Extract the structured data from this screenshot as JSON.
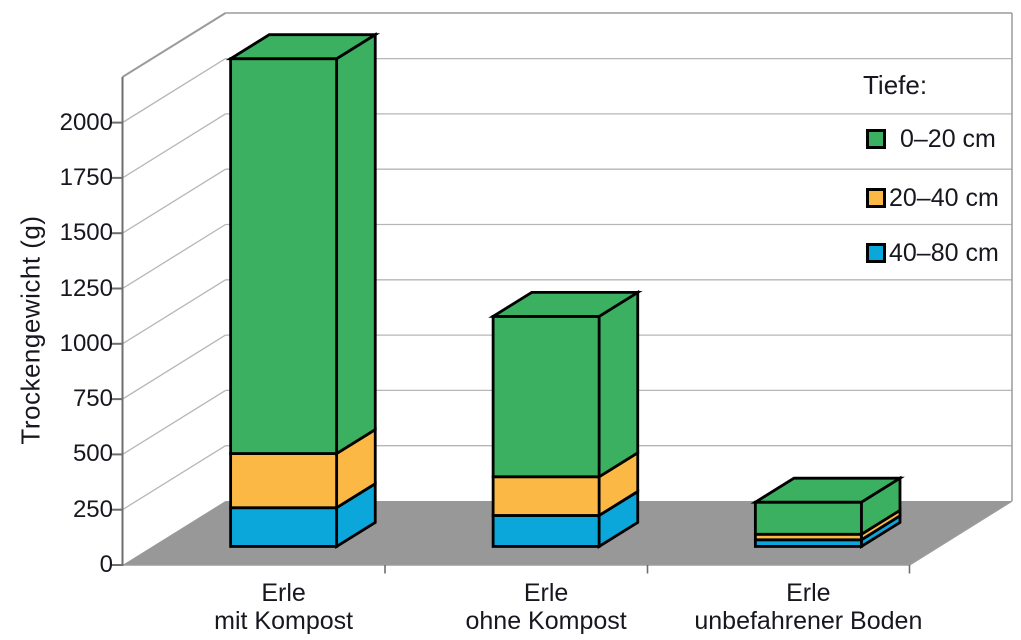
{
  "chart_data": {
    "type": "bar",
    "variant": "3d-stacked-columns",
    "title": "",
    "xlabel": "",
    "ylabel": "Trockengewicht (g)",
    "yticks": [
      0,
      250,
      500,
      750,
      1000,
      1250,
      1500,
      1750,
      2000
    ],
    "ylim": [
      0,
      2200
    ],
    "grid": true,
    "categories": [
      {
        "lines": [
          "Erle",
          "mit Kompost"
        ]
      },
      {
        "lines": [
          "Erle",
          "ohne Kompost"
        ]
      },
      {
        "lines": [
          "Erle",
          "unbefahrener Boden"
        ]
      }
    ],
    "legend": {
      "title": "Tiefe:",
      "position": "top-right"
    },
    "series": [
      {
        "name": "0–20 cm",
        "color": "#3cb061",
        "values": [
          1785,
          725,
          145
        ]
      },
      {
        "name": "20–40 cm",
        "color": "#fbb845",
        "values": [
          245,
          175,
          25
        ]
      },
      {
        "name": "40–80 cm",
        "color": "#0ba7db",
        "values": [
          175,
          140,
          30
        ]
      }
    ],
    "stack_bottom_to_top": [
      "40–80 cm",
      "20–40 cm",
      "0–20 cm"
    ],
    "colors": {
      "floor": "#989898",
      "gridline": "#b6b6b6",
      "axis": "#6e6e6e",
      "wall_edge": "#9b9b9b",
      "bar_outline": "#000000",
      "text": "#17171f"
    }
  }
}
